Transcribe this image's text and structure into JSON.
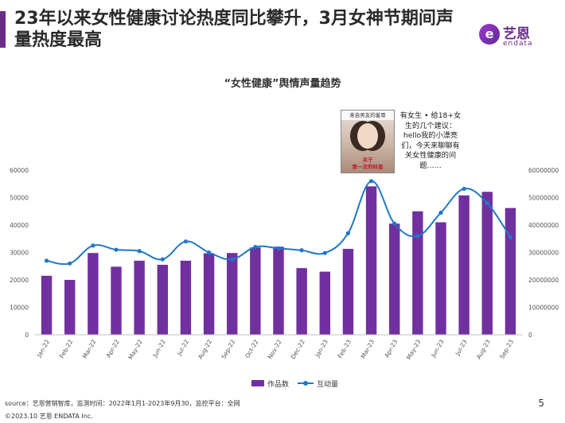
{
  "header": {
    "title": "23年以来女性健康讨论热度同比攀升，3月女神节期间声量热度最高"
  },
  "logo": {
    "mark": "e",
    "name_cn": "艺恩",
    "name_en": "endata",
    "brand_color": "#6a2c8c"
  },
  "post_card": {
    "thumb_top_text": "来自男友的羞辱",
    "thumb_bottom_text": "关于\n第一次的科普",
    "text": "有女生 • 给18+女生的几个建议：hello我的小漂亮们，今天来聊聊有关女性健康的问题……"
  },
  "chart_data": {
    "type": "bar",
    "title": "“女性健康”舆情声量趋势",
    "categories": [
      "Jan-22",
      "Feb-22",
      "Mar-22",
      "Apr-22",
      "May-22",
      "Jun-22",
      "Jul-22",
      "Aug-22",
      "Sep-22",
      "Oct-22",
      "Nov-22",
      "Dec-22",
      "Jan-23",
      "Feb-23",
      "Mar-23",
      "Apr-23",
      "May-23",
      "Jun-23",
      "Jul-23",
      "Aug-23",
      "Sep-23"
    ],
    "series": [
      {
        "name": "作品数",
        "type": "bar",
        "axis": "left",
        "color": "#7030a0",
        "values": [
          21500,
          20000,
          29800,
          24800,
          27000,
          25500,
          27000,
          29700,
          29800,
          31800,
          32100,
          24300,
          23000,
          31300,
          54100,
          40500,
          45000,
          41000,
          50800,
          52100,
          46200
        ]
      },
      {
        "name": "互动量",
        "type": "line",
        "axis": "right",
        "color": "#1f78c8",
        "values": [
          27000000,
          26000000,
          32500000,
          31000000,
          30500000,
          27500000,
          34000000,
          30000000,
          27500000,
          32000000,
          31500000,
          30800000,
          29800000,
          37000000,
          56000000,
          40500000,
          36000000,
          44500000,
          53200000,
          48000000,
          35500000
        ]
      }
    ],
    "ylim_left": [
      0,
      60000
    ],
    "ylim_right": [
      0,
      60000000
    ],
    "yticks_left": [
      "0",
      "10000",
      "20000",
      "30000",
      "40000",
      "50000",
      "60000"
    ],
    "yticks_right": [
      "0",
      "10000000",
      "20000000",
      "30000000",
      "40000000",
      "50000000",
      "60000000"
    ],
    "legend_position": "bottom",
    "grid": false
  },
  "footer": {
    "source": "source：艺恩营销智库，监测时间：2022年1月1-2023年9月30，监控平台：全网",
    "copyright": "©2023.10  艺恩 ENDATA Inc.",
    "page_number": "5"
  }
}
